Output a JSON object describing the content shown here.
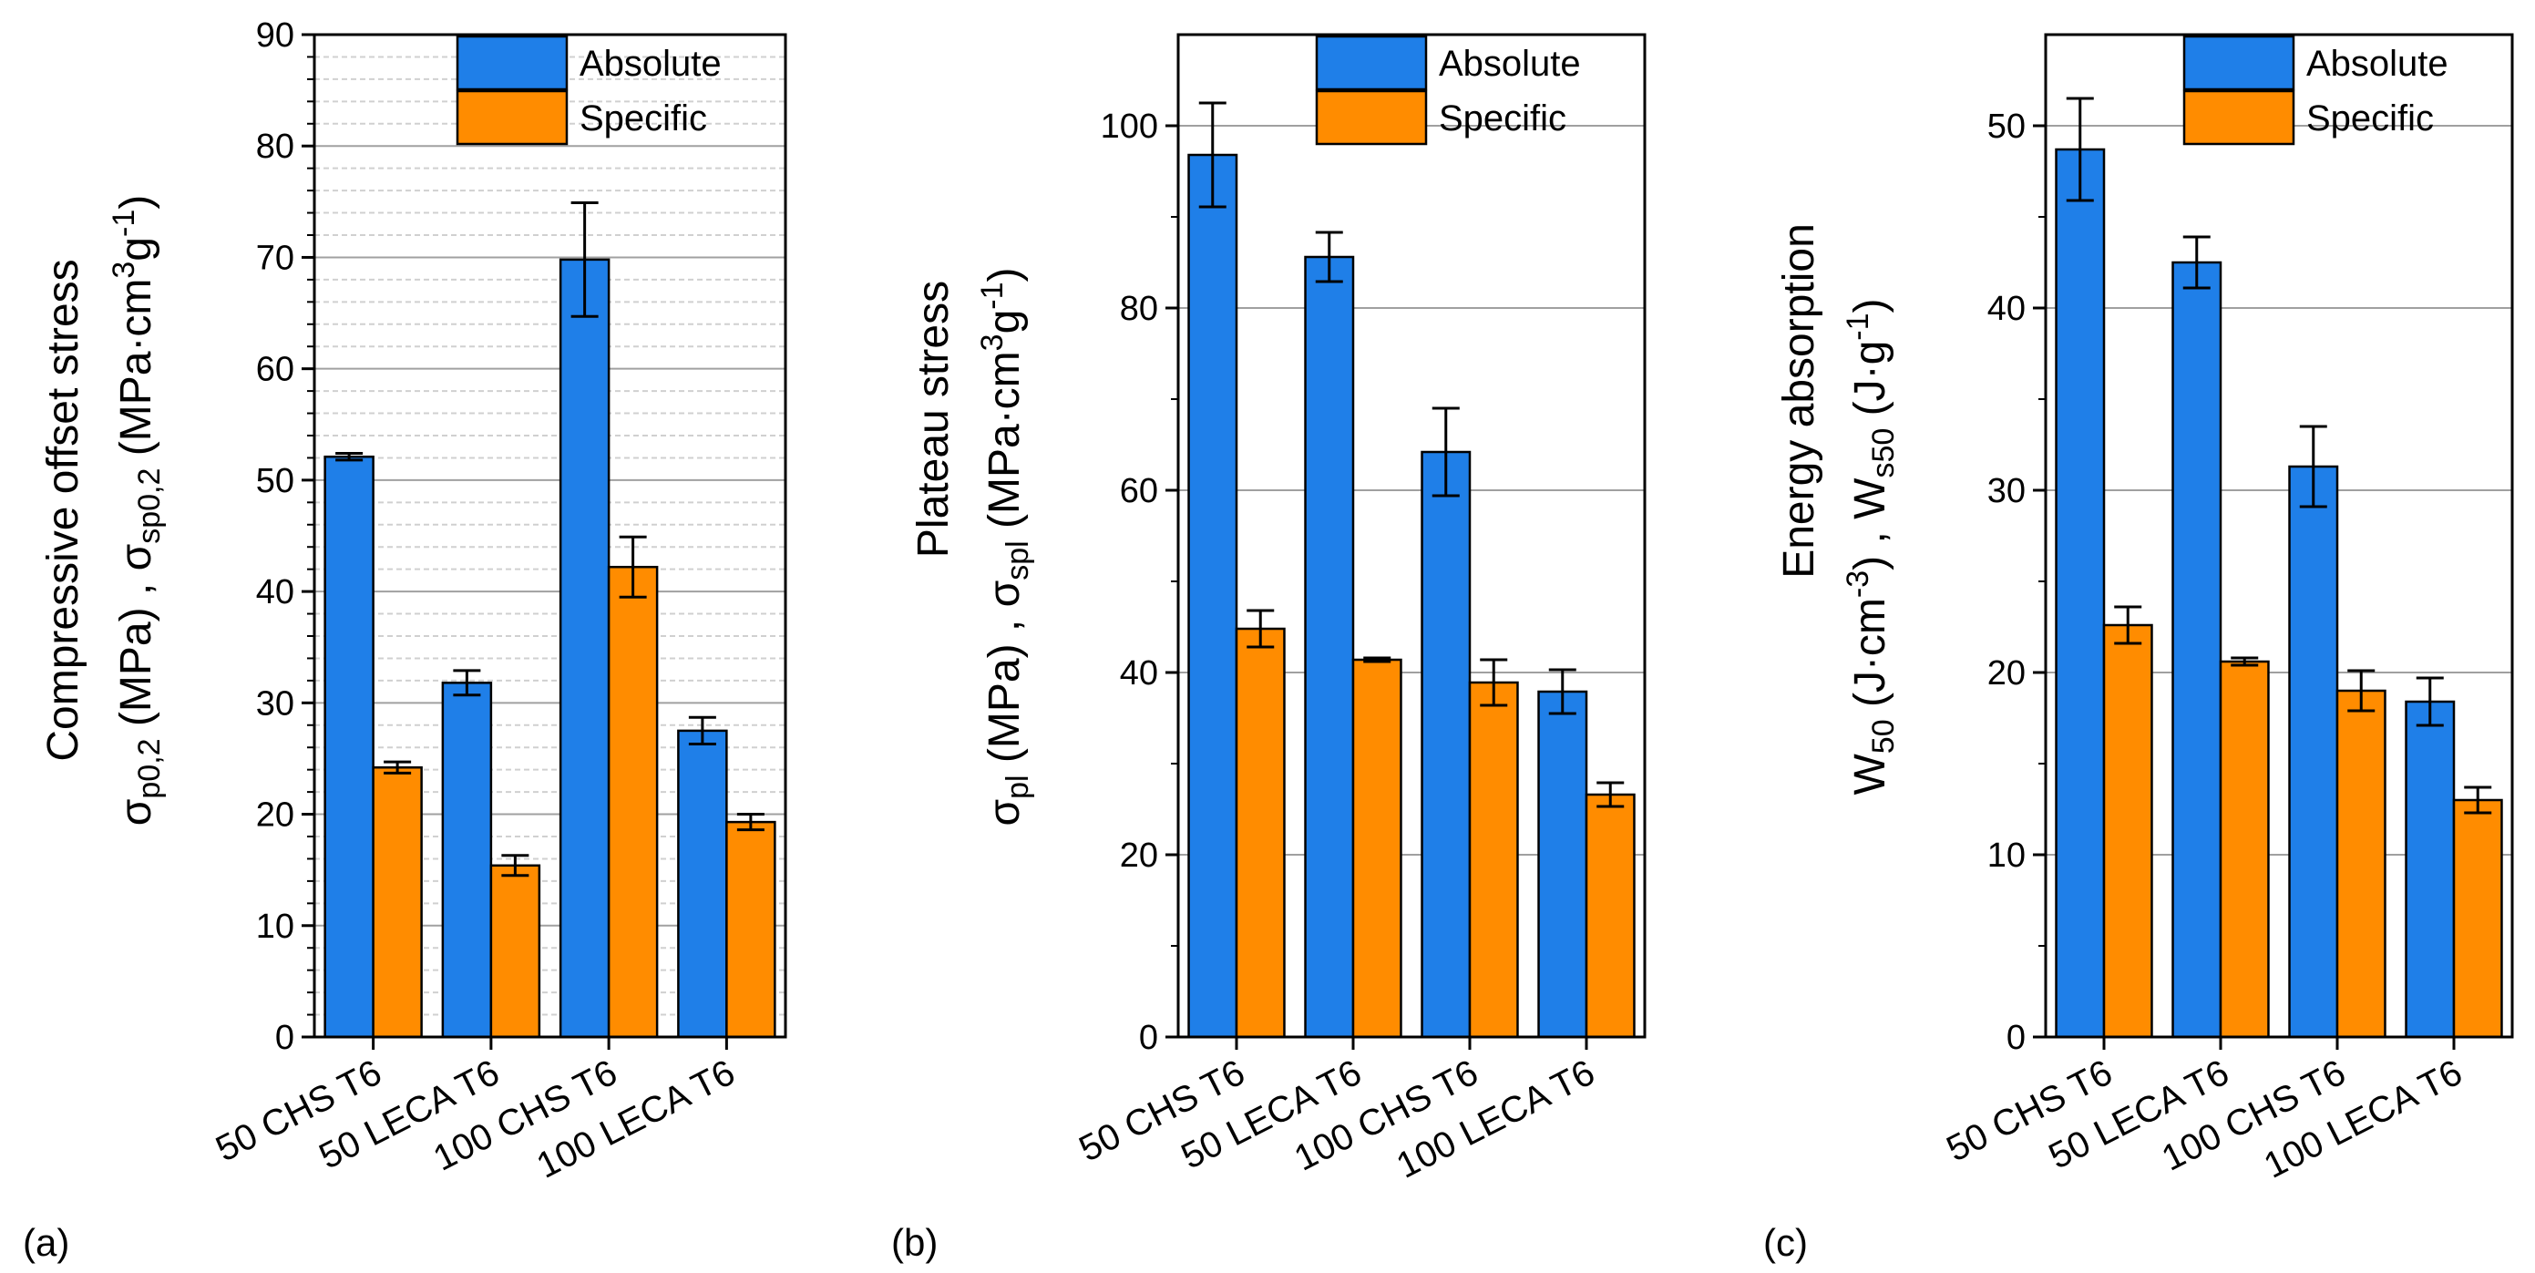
{
  "colors": {
    "absolute": "#1f7fe8",
    "specific": "#ff8c00",
    "axis": "#000000",
    "grid_major": "#a0a0a0",
    "grid_minor": "#d0d0d0"
  },
  "categories": [
    "50 CHS T6",
    "50 LECA T6",
    "100 CHS T6",
    "100 LECA T6"
  ],
  "legend": {
    "absolute": "Absolute",
    "specific": "Specific"
  },
  "panel_labels": [
    "(a)",
    "(b)",
    "(c)"
  ],
  "ylabels": {
    "a": {
      "line1": "Compressive offset stress",
      "sym1": "σ",
      "sub1": "p0,2",
      "unit1": " (MPa) , ",
      "sym2": "σ",
      "sub2": "sp0,2",
      "unit2a": " (MPa·cm",
      "sup1": "3",
      "unit2b": "g",
      "sup2": "-1",
      "unit2c": ")"
    },
    "b": {
      "line1": "Plateau stress",
      "sym1": "σ",
      "sub1": "pl",
      "unit1": " (MPa) , ",
      "sym2": "σ",
      "sub2": "spl",
      "unit2a": " (MPa·cm",
      "sup1": "3",
      "unit2b": "g",
      "sup2": "-1",
      "unit2c": ")"
    },
    "c": {
      "line1": "Energy absorption",
      "sym1": "W",
      "sub1": "50",
      "unit1a": " (J·cm",
      "sup1": "-3",
      "unit1b": ") , ",
      "sym2": "W",
      "sub2": "s50",
      "unit2a": " (J·g",
      "sup2": "-1",
      "unit2c": ")"
    }
  },
  "chart_data": [
    {
      "type": "bar",
      "panel": "(a)",
      "categories": [
        "50 CHS T6",
        "50 LECA T6",
        "100 CHS T6",
        "100 LECA T6"
      ],
      "series": [
        {
          "name": "Absolute",
          "values": [
            52.1,
            31.8,
            69.8,
            27.5
          ],
          "errors": [
            0.3,
            1.1,
            5.1,
            1.2
          ]
        },
        {
          "name": "Specific",
          "values": [
            24.2,
            15.4,
            42.2,
            19.3
          ],
          "errors": [
            0.5,
            0.9,
            2.7,
            0.7
          ]
        }
      ],
      "ylim": [
        0,
        90
      ],
      "yticks": [
        0,
        10,
        20,
        30,
        40,
        50,
        60,
        70,
        80,
        90
      ],
      "minor_step": 2,
      "legend_position": "top-right"
    },
    {
      "type": "bar",
      "panel": "(b)",
      "categories": [
        "50 CHS T6",
        "50 LECA T6",
        "100 CHS T6",
        "100 LECA T6"
      ],
      "series": [
        {
          "name": "Absolute",
          "values": [
            96.8,
            85.6,
            64.2,
            37.9
          ],
          "errors": [
            5.7,
            2.7,
            4.8,
            2.4
          ]
        },
        {
          "name": "Specific",
          "values": [
            44.8,
            41.4,
            38.9,
            26.6
          ],
          "errors": [
            2.0,
            0.2,
            2.5,
            1.3
          ]
        }
      ],
      "ylim": [
        0,
        110
      ],
      "yticks": [
        0,
        20,
        40,
        60,
        80,
        100
      ],
      "minor_step": null,
      "legend_position": "top-right"
    },
    {
      "type": "bar",
      "panel": "(c)",
      "categories": [
        "50 CHS T6",
        "50 LECA T6",
        "100 CHS T6",
        "100 LECA T6"
      ],
      "series": [
        {
          "name": "Absolute",
          "values": [
            48.7,
            42.5,
            31.3,
            18.4
          ],
          "errors": [
            2.8,
            1.4,
            2.2,
            1.3
          ]
        },
        {
          "name": "Specific",
          "values": [
            22.6,
            20.6,
            19.0,
            13.0
          ],
          "errors": [
            1.0,
            0.2,
            1.1,
            0.7
          ]
        }
      ],
      "ylim": [
        0,
        55
      ],
      "yticks": [
        0,
        10,
        20,
        30,
        40,
        50
      ],
      "minor_step": null,
      "legend_position": "top-right"
    }
  ]
}
